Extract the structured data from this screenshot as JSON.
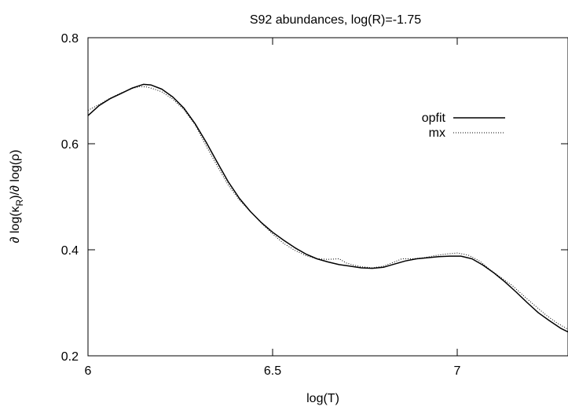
{
  "chart_data": {
    "type": "line",
    "title": "S92 abundances, log(R)=-1.75",
    "xlabel": "log(T)",
    "ylabel": "∂ log(κR)/∂ log(ρ)",
    "ylabel_parts": {
      "pre": "∂ log(κ",
      "sub": "R",
      "post": ")/∂ log(ρ)"
    },
    "xlim": [
      6.0,
      7.3
    ],
    "ylim": [
      0.2,
      0.8
    ],
    "xticks": [
      {
        "value": 6.0,
        "label": "6"
      },
      {
        "value": 6.5,
        "label": "6.5"
      },
      {
        "value": 7.0,
        "label": "7"
      }
    ],
    "yticks": [
      {
        "value": 0.2,
        "label": "0.2"
      },
      {
        "value": 0.4,
        "label": "0.4"
      },
      {
        "value": 0.6,
        "label": "0.6"
      },
      {
        "value": 0.8,
        "label": "0.8"
      }
    ],
    "grid": false,
    "legend_position": "top-right",
    "series": [
      {
        "name": "opfit",
        "style": "solid",
        "color": "#000000",
        "x": [
          6.0,
          6.03,
          6.06,
          6.09,
          6.12,
          6.15,
          6.17,
          6.2,
          6.23,
          6.26,
          6.29,
          6.32,
          6.35,
          6.38,
          6.41,
          6.44,
          6.47,
          6.5,
          6.53,
          6.56,
          6.59,
          6.62,
          6.65,
          6.68,
          6.71,
          6.74,
          6.77,
          6.8,
          6.83,
          6.86,
          6.89,
          6.92,
          6.95,
          6.98,
          7.01,
          7.04,
          7.07,
          7.1,
          7.13,
          7.16,
          7.19,
          7.22,
          7.25,
          7.28,
          7.3
        ],
        "y": [
          0.653,
          0.672,
          0.685,
          0.695,
          0.705,
          0.712,
          0.711,
          0.703,
          0.688,
          0.667,
          0.638,
          0.603,
          0.565,
          0.528,
          0.497,
          0.472,
          0.451,
          0.433,
          0.418,
          0.404,
          0.392,
          0.383,
          0.377,
          0.372,
          0.369,
          0.366,
          0.365,
          0.367,
          0.373,
          0.379,
          0.383,
          0.385,
          0.387,
          0.388,
          0.388,
          0.383,
          0.371,
          0.356,
          0.339,
          0.32,
          0.3,
          0.281,
          0.266,
          0.252,
          0.245
        ]
      },
      {
        "name": "mx",
        "style": "dotted",
        "color": "#000000",
        "x": [
          6.0,
          6.03,
          6.06,
          6.09,
          6.12,
          6.14,
          6.16,
          6.18,
          6.2,
          6.23,
          6.26,
          6.29,
          6.32,
          6.35,
          6.38,
          6.41,
          6.44,
          6.47,
          6.5,
          6.53,
          6.56,
          6.59,
          6.62,
          6.65,
          6.68,
          6.7,
          6.72,
          6.74,
          6.77,
          6.8,
          6.83,
          6.85,
          6.88,
          6.91,
          6.94,
          6.97,
          7.0,
          7.03,
          7.06,
          7.09,
          7.12,
          7.15,
          7.18,
          7.21,
          7.24,
          7.27,
          7.3
        ],
        "y": [
          0.663,
          0.674,
          0.686,
          0.696,
          0.704,
          0.708,
          0.707,
          0.703,
          0.698,
          0.684,
          0.664,
          0.636,
          0.596,
          0.558,
          0.522,
          0.494,
          0.472,
          0.45,
          0.43,
          0.412,
          0.399,
          0.389,
          0.383,
          0.382,
          0.383,
          0.375,
          0.371,
          0.368,
          0.366,
          0.369,
          0.377,
          0.383,
          0.383,
          0.385,
          0.389,
          0.392,
          0.394,
          0.39,
          0.379,
          0.362,
          0.347,
          0.332,
          0.313,
          0.295,
          0.277,
          0.262,
          0.25
        ]
      }
    ]
  }
}
